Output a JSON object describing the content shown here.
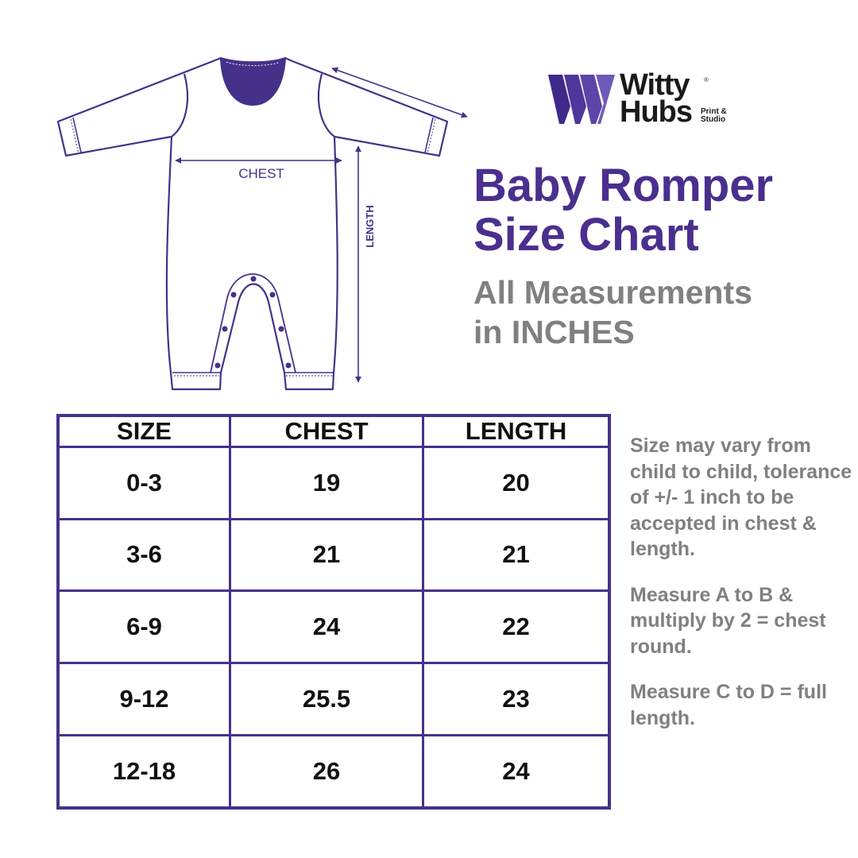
{
  "brand": {
    "name_line1": "Witty",
    "name_line2": "Hubs",
    "registered": "®",
    "tagline": "Print & Studio",
    "color": "#5a3fa0"
  },
  "illustration": {
    "chest_label": "CHEST",
    "length_label": "LENGTH",
    "stroke_color": "#46318a"
  },
  "title": {
    "line1": "Baby Romper",
    "line2": "Size Chart",
    "color": "#4a2f8e"
  },
  "subtitle": {
    "line1": "All Measurements",
    "line2": "in INCHES",
    "color": "#808080"
  },
  "table": {
    "headers": [
      "SIZE",
      "CHEST",
      "LENGTH"
    ],
    "rows": [
      [
        "0-3",
        "19",
        "20"
      ],
      [
        "3-6",
        "21",
        "21"
      ],
      [
        "6-9",
        "24",
        "22"
      ],
      [
        "9-12",
        "25.5",
        "23"
      ],
      [
        "12-18",
        "26",
        "24"
      ]
    ],
    "border_color": "#46318a"
  },
  "notes": [
    "Size may vary from child to child, tolerance of +/- 1 inch to be accepted in chest & length.",
    "Measure A to B & multiply by 2 = chest round.",
    "Measure C to D = full length."
  ]
}
